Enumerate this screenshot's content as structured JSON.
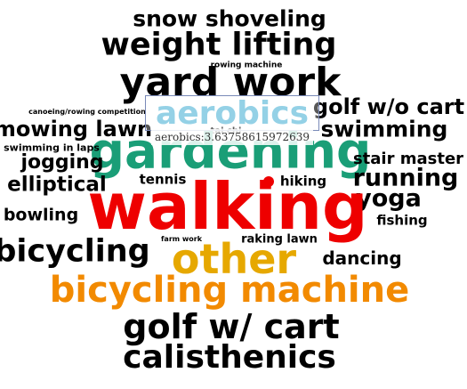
{
  "chart_data": {
    "type": "wordcloud",
    "title": "",
    "words": [
      {
        "text": "snow shoveling",
        "color": "#000000"
      },
      {
        "text": "weight lifting",
        "color": "#000000"
      },
      {
        "text": "rowing machine",
        "color": "#000000"
      },
      {
        "text": "yard work",
        "color": "#000000"
      },
      {
        "text": "canoeing/rowing competition",
        "color": "#000000"
      },
      {
        "text": "aerobics",
        "color": "#5bb8d9",
        "value": 3.63758615972639
      },
      {
        "text": "golf w/o cart",
        "color": "#000000"
      },
      {
        "text": "mowing lawn",
        "color": "#000000"
      },
      {
        "text": "tai chi",
        "color": "#000000"
      },
      {
        "text": "swimming",
        "color": "#000000"
      },
      {
        "text": "gardening",
        "color": "#1a9e77"
      },
      {
        "text": "swimming in laps",
        "color": "#000000"
      },
      {
        "text": "jogging",
        "color": "#000000"
      },
      {
        "text": "stair master",
        "color": "#000000"
      },
      {
        "text": "elliptical",
        "color": "#000000"
      },
      {
        "text": "tennis",
        "color": "#000000"
      },
      {
        "text": "hiking",
        "color": "#000000"
      },
      {
        "text": "running",
        "color": "#000000"
      },
      {
        "text": "yoga",
        "color": "#000000"
      },
      {
        "text": "walking",
        "color": "#ee0000"
      },
      {
        "text": "bowling",
        "color": "#000000"
      },
      {
        "text": "fishing",
        "color": "#000000"
      },
      {
        "text": "farm work",
        "color": "#000000"
      },
      {
        "text": "raking lawn",
        "color": "#000000"
      },
      {
        "text": "bicycling",
        "color": "#000000"
      },
      {
        "text": "other",
        "color": "#e6a800"
      },
      {
        "text": "dancing",
        "color": "#000000"
      },
      {
        "text": "bicycling machine",
        "color": "#f28a00"
      },
      {
        "text": "golf w/ cart",
        "color": "#000000"
      },
      {
        "text": "calisthenics",
        "color": "#000000"
      }
    ],
    "tooltip": {
      "text": "aerobics:3.63758615972639",
      "word": "aerobics",
      "value": 3.63758615972639
    },
    "hover_marker_color": "#ee0000"
  }
}
